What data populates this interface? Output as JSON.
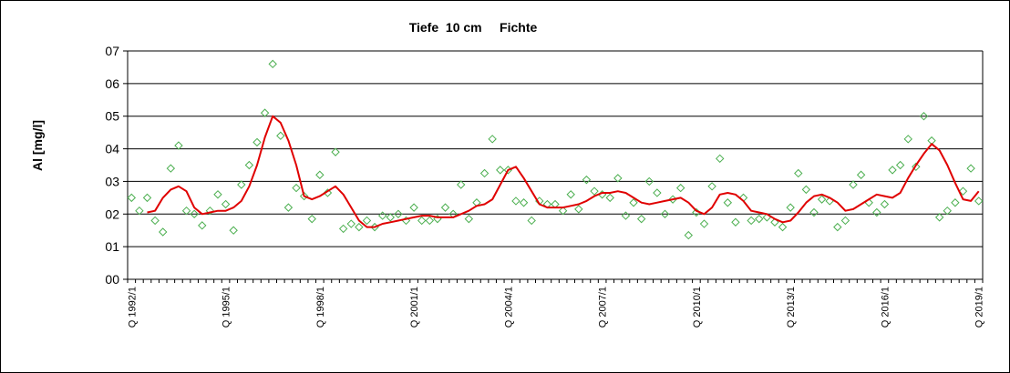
{
  "chart_data": {
    "type": "line",
    "title": "Tiefe  10 cm     Fichte",
    "ylabel": "Al [mg/l]",
    "xlabel": "",
    "ylim": [
      0,
      7
    ],
    "yticks": [
      "00",
      "01",
      "02",
      "03",
      "04",
      "05",
      "06",
      "07"
    ],
    "grid": true,
    "legend": "none",
    "x_start_year": 1992,
    "x_tick_labels": [
      "Q 1992/1",
      "Q 1995/1",
      "Q 1998/1",
      "Q 2001/1",
      "Q 2004/1",
      "Q 2007/1",
      "Q 2010/1",
      "Q 2013/1",
      "Q 2016/1",
      "Q 2019/1"
    ],
    "colors": {
      "points": "#4caf50",
      "line": "#e00000",
      "grid": "#000000"
    },
    "series": [
      {
        "type": "scatter",
        "marker": "diamond-open",
        "values": [
          2.5,
          2.1,
          2.5,
          1.8,
          1.45,
          3.4,
          4.1,
          2.1,
          2.0,
          1.65,
          2.1,
          2.6,
          2.3,
          1.5,
          2.9,
          3.5,
          4.2,
          5.1,
          6.6,
          4.4,
          2.2,
          2.8,
          2.55,
          1.85,
          3.2,
          2.65,
          3.9,
          1.55,
          1.7,
          1.6,
          1.8,
          1.6,
          1.95,
          1.9,
          2.0,
          1.8,
          2.2,
          1.8,
          1.8,
          1.85,
          2.2,
          2.0,
          2.9,
          1.85,
          2.35,
          3.25,
          4.3,
          3.35,
          3.35,
          2.4,
          2.35,
          1.8,
          2.4,
          2.3,
          2.3,
          2.1,
          2.6,
          2.15,
          3.05,
          2.7,
          2.6,
          2.5,
          3.1,
          1.95,
          2.35,
          1.85,
          3.0,
          2.65,
          2.0,
          2.45,
          2.8,
          1.35,
          2.05,
          1.7,
          2.85,
          3.7,
          2.35,
          1.75,
          2.5,
          1.8,
          1.85,
          1.9,
          1.75,
          1.6,
          2.2,
          3.25,
          2.75,
          2.05,
          2.45,
          2.4,
          1.6,
          1.8,
          2.9,
          3.2,
          2.35,
          2.05,
          2.3,
          3.35,
          3.5,
          4.3,
          3.45,
          5.0,
          4.25,
          1.9,
          2.1,
          2.35,
          2.7,
          3.4,
          2.4
        ]
      },
      {
        "type": "line",
        "x_offset": 2,
        "values": [
          2.05,
          2.1,
          2.5,
          2.75,
          2.85,
          2.7,
          2.2,
          2.0,
          2.05,
          2.1,
          2.1,
          2.2,
          2.4,
          2.85,
          3.5,
          4.35,
          5.0,
          4.8,
          4.25,
          3.5,
          2.55,
          2.45,
          2.55,
          2.7,
          2.85,
          2.6,
          2.2,
          1.8,
          1.6,
          1.6,
          1.7,
          1.75,
          1.8,
          1.85,
          1.9,
          1.95,
          1.95,
          1.9,
          1.9,
          1.9,
          2.0,
          2.1,
          2.25,
          2.3,
          2.45,
          2.9,
          3.35,
          3.45,
          3.1,
          2.7,
          2.3,
          2.2,
          2.2,
          2.2,
          2.25,
          2.3,
          2.4,
          2.55,
          2.65,
          2.65,
          2.7,
          2.65,
          2.5,
          2.35,
          2.3,
          2.35,
          2.4,
          2.45,
          2.5,
          2.35,
          2.1,
          2.0,
          2.2,
          2.6,
          2.65,
          2.6,
          2.4,
          2.1,
          2.05,
          2.0,
          1.85,
          1.75,
          1.8,
          2.05,
          2.35,
          2.55,
          2.6,
          2.5,
          2.35,
          2.1,
          2.15,
          2.3,
          2.45,
          2.6,
          2.55,
          2.5,
          2.65,
          3.1,
          3.5,
          3.85,
          4.15,
          3.95,
          3.5,
          2.95,
          2.45,
          2.4,
          2.7
        ]
      }
    ]
  }
}
